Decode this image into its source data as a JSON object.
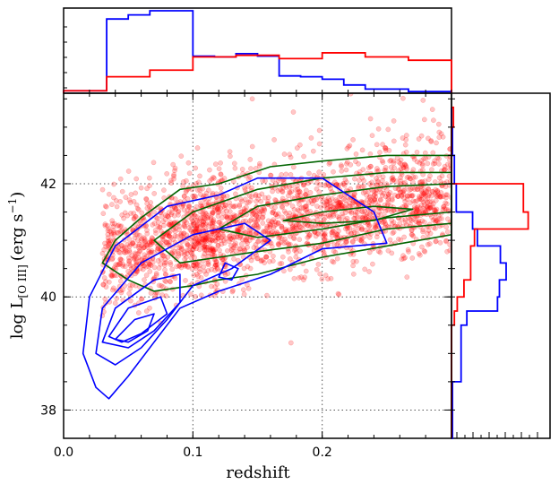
{
  "chart_data": {
    "type": "scatter",
    "description_free": true,
    "xlabel": "redshift",
    "ylabel_main": "log L",
    "ylabel_sub": "[O III]",
    "ylabel_units_open": "(erg s",
    "ylabel_units_exp": "−1",
    "ylabel_units_close": ")",
    "xlim": [
      0.0,
      0.3
    ],
    "ylim": [
      37.5,
      43.6
    ],
    "xticks": [
      0.0,
      0.1,
      0.2
    ],
    "xtick_labels": [
      "0.0",
      "0.1",
      "0.2"
    ],
    "yticks": [
      38,
      40,
      42
    ],
    "ytick_labels": [
      "38",
      "40",
      "42"
    ],
    "grid": true,
    "colors": {
      "red": "#ff0000",
      "blue": "#0000ff",
      "green": "#006400",
      "grid": "#555555"
    },
    "scatter_series": {
      "color": "#ff0000",
      "seed": 7,
      "clusters": [
        {
          "n": 1400,
          "x_min": 0.1,
          "x_max": 0.3,
          "y_center_at_xmin": 41.1,
          "y_center_at_xmax": 41.7,
          "y_sd": 0.45
        },
        {
          "n": 700,
          "x_min": 0.03,
          "x_max": 0.12,
          "y_center_at_xmin": 40.8,
          "y_center_at_xmax": 41.2,
          "y_sd": 0.5
        },
        {
          "n": 260,
          "x_min": 0.08,
          "x_max": 0.3,
          "y_center_at_xmin": 41.5,
          "y_center_at_xmax": 42.3,
          "y_sd": 0.6
        }
      ]
    },
    "green_contours": [
      [
        [
          0.03,
          40.6
        ],
        [
          0.04,
          41.0
        ],
        [
          0.06,
          41.4
        ],
        [
          0.09,
          41.9
        ],
        [
          0.12,
          42.0
        ],
        [
          0.16,
          42.3
        ],
        [
          0.2,
          42.4
        ],
        [
          0.25,
          42.5
        ],
        [
          0.3,
          42.5
        ],
        [
          0.3,
          41.1
        ],
        [
          0.25,
          40.9
        ],
        [
          0.2,
          40.7
        ],
        [
          0.15,
          40.4
        ],
        [
          0.12,
          40.3
        ],
        [
          0.1,
          40.2
        ],
        [
          0.07,
          40.1
        ],
        [
          0.05,
          40.3
        ],
        [
          0.03,
          40.6
        ]
      ],
      [
        [
          0.07,
          41.0
        ],
        [
          0.1,
          41.5
        ],
        [
          0.15,
          41.9
        ],
        [
          0.2,
          42.1
        ],
        [
          0.25,
          42.2
        ],
        [
          0.3,
          42.2
        ],
        [
          0.3,
          41.3
        ],
        [
          0.25,
          41.2
        ],
        [
          0.2,
          40.95
        ],
        [
          0.15,
          40.8
        ],
        [
          0.12,
          40.7
        ],
        [
          0.09,
          40.6
        ],
        [
          0.07,
          41.0
        ]
      ],
      [
        [
          0.12,
          41.2
        ],
        [
          0.15,
          41.6
        ],
        [
          0.2,
          41.8
        ],
        [
          0.25,
          41.95
        ],
        [
          0.3,
          42.0
        ],
        [
          0.3,
          41.5
        ],
        [
          0.25,
          41.4
        ],
        [
          0.2,
          41.2
        ],
        [
          0.15,
          41.05
        ],
        [
          0.12,
          41.2
        ]
      ],
      [
        [
          0.17,
          41.35
        ],
        [
          0.2,
          41.5
        ],
        [
          0.24,
          41.6
        ],
        [
          0.27,
          41.55
        ],
        [
          0.24,
          41.35
        ],
        [
          0.2,
          41.3
        ],
        [
          0.17,
          41.35
        ]
      ]
    ],
    "blue_contours": [
      [
        [
          0.025,
          38.4
        ],
        [
          0.015,
          39.0
        ],
        [
          0.02,
          40.0
        ],
        [
          0.04,
          40.9
        ],
        [
          0.08,
          41.6
        ],
        [
          0.12,
          41.8
        ],
        [
          0.15,
          42.1
        ],
        [
          0.2,
          42.1
        ],
        [
          0.24,
          41.5
        ],
        [
          0.25,
          40.95
        ],
        [
          0.2,
          40.85
        ],
        [
          0.16,
          40.4
        ],
        [
          0.12,
          40.1
        ],
        [
          0.09,
          39.8
        ],
        [
          0.07,
          39.2
        ],
        [
          0.05,
          38.6
        ],
        [
          0.035,
          38.2
        ],
        [
          0.025,
          38.4
        ]
      ],
      [
        [
          0.025,
          39.0
        ],
        [
          0.03,
          39.8
        ],
        [
          0.06,
          40.6
        ],
        [
          0.1,
          41.1
        ],
        [
          0.14,
          41.3
        ],
        [
          0.16,
          41.0
        ],
        [
          0.13,
          40.5
        ],
        [
          0.1,
          40.2
        ],
        [
          0.08,
          39.6
        ],
        [
          0.06,
          39.1
        ],
        [
          0.04,
          38.8
        ],
        [
          0.025,
          39.0
        ]
      ],
      [
        [
          0.03,
          39.2
        ],
        [
          0.04,
          39.8
        ],
        [
          0.07,
          40.3
        ],
        [
          0.09,
          40.4
        ],
        [
          0.09,
          39.9
        ],
        [
          0.07,
          39.4
        ],
        [
          0.05,
          39.1
        ],
        [
          0.03,
          39.2
        ]
      ],
      [
        [
          0.035,
          39.3
        ],
        [
          0.05,
          39.8
        ],
        [
          0.075,
          40.0
        ],
        [
          0.08,
          39.7
        ],
        [
          0.06,
          39.35
        ],
        [
          0.045,
          39.2
        ],
        [
          0.035,
          39.3
        ]
      ],
      [
        [
          0.04,
          39.25
        ],
        [
          0.055,
          39.6
        ],
        [
          0.07,
          39.7
        ],
        [
          0.065,
          39.4
        ],
        [
          0.05,
          39.2
        ],
        [
          0.04,
          39.25
        ]
      ],
      [
        [
          0.12,
          40.35
        ],
        [
          0.125,
          40.6
        ],
        [
          0.135,
          40.5
        ],
        [
          0.13,
          40.3
        ],
        [
          0.12,
          40.35
        ]
      ]
    ],
    "top_histograms": {
      "x_edges": [
        0.0,
        0.0167,
        0.0333,
        0.05,
        0.0667,
        0.0833,
        0.1,
        0.1167,
        0.1333,
        0.15,
        0.1667,
        0.1833,
        0.2,
        0.2167,
        0.2333,
        0.25,
        0.2667,
        0.2833,
        0.3
      ],
      "blue": [
        0.03,
        0.03,
        0.9,
        0.95,
        1.0,
        1.0,
        0.45,
        0.44,
        0.48,
        0.45,
        0.21,
        0.2,
        0.17,
        0.1,
        0.05,
        0.05,
        0.02,
        0.02
      ],
      "red": [
        0.03,
        0.03,
        0.2,
        0.2,
        0.28,
        0.28,
        0.44,
        0.44,
        0.46,
        0.46,
        0.42,
        0.42,
        0.49,
        0.49,
        0.44,
        0.44,
        0.4,
        0.4
      ]
    },
    "right_histograms": {
      "y_edges": [
        37.5,
        38.0,
        38.5,
        39.0,
        39.5,
        39.75,
        40.0,
        40.3,
        40.6,
        40.9,
        41.2,
        41.5,
        42.0,
        42.5,
        43.0,
        43.35
      ],
      "blue": [
        0.01,
        0.01,
        0.1,
        0.1,
        0.16,
        0.48,
        0.5,
        0.57,
        0.51,
        0.27,
        0.22,
        0.05,
        0.03,
        0.01,
        0.0
      ],
      "red": [
        0.0,
        0.0,
        0.0,
        0.0,
        0.03,
        0.06,
        0.13,
        0.2,
        0.2,
        0.24,
        0.8,
        0.75,
        0.0,
        0.0,
        0.02
      ]
    }
  }
}
